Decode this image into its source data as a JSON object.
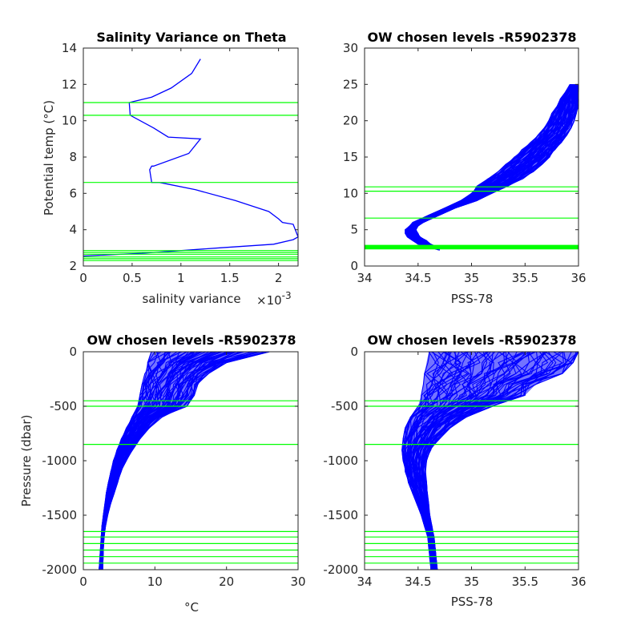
{
  "colors": {
    "profile": "#0000ff",
    "level_line": "#00ff00",
    "axis": "#262626"
  },
  "chart_data": [
    {
      "type": "line",
      "title": "Salinity Variance on Theta",
      "xlabel": "salinity variance",
      "x_exponent_label": "×10",
      "x_exponent_power": "-3",
      "ylabel": "Potential temp (°C)",
      "xlim": [
        0,
        2.2
      ],
      "ylim": [
        2,
        14
      ],
      "xticks": [
        0,
        0.5,
        1,
        1.5,
        2
      ],
      "xtick_labels": [
        "0",
        "0.5",
        "1",
        "1.5",
        "2"
      ],
      "yticks": [
        2,
        4,
        6,
        8,
        10,
        12,
        14
      ],
      "ytick_labels": [
        "2",
        "4",
        "6",
        "8",
        "10",
        "12",
        "14"
      ],
      "series": [
        {
          "x": [
            1.2,
            1.11,
            0.9,
            0.7,
            0.47,
            0.48,
            0.72,
            0.87,
            1.2,
            1.08,
            0.72,
            0.7,
            0.68,
            0.7,
            0.78,
            1.15,
            1.56,
            1.9,
            2.0,
            2.04,
            2.15,
            2.2,
            2.15,
            1.95,
            1.4,
            0.6,
            0.0
          ],
          "y": [
            13.4,
            12.6,
            11.8,
            11.3,
            11.0,
            10.3,
            9.6,
            9.1,
            9.0,
            8.2,
            7.5,
            7.5,
            7.3,
            6.6,
            6.6,
            6.2,
            5.6,
            5.0,
            4.6,
            4.4,
            4.3,
            3.6,
            3.45,
            3.2,
            3.0,
            2.7,
            2.55
          ]
        }
      ],
      "hlines": [
        11.0,
        10.3,
        6.6,
        2.85,
        2.75,
        2.65,
        2.5,
        2.4,
        2.3
      ]
    },
    {
      "type": "line",
      "title": "OW chosen levels -R5902378",
      "xlabel": "PSS-78",
      "ylabel": "",
      "xlim": [
        34,
        36
      ],
      "ylim": [
        0,
        30
      ],
      "xticks": [
        34,
        34.5,
        35,
        35.5,
        36
      ],
      "xtick_labels": [
        "34",
        "34.5",
        "35",
        "35.5",
        "36"
      ],
      "yticks": [
        0,
        5,
        10,
        15,
        20,
        25,
        30
      ],
      "ytick_labels": [
        "0",
        "5",
        "10",
        "15",
        "20",
        "25",
        "30"
      ],
      "profile_envelope": {
        "y": [
          2.2,
          2.6,
          3.0,
          3.5,
          4.0,
          4.5,
          5.0,
          5.5,
          6.0,
          7.0,
          8.0,
          9.0,
          10.0,
          11.0,
          12.0,
          13.0,
          14.0,
          15.0,
          16.0,
          17.0,
          18.0,
          19.0,
          20.0,
          21.0,
          22.0,
          23.0,
          24.0,
          25.0
        ],
        "x_left": [
          34.7,
          34.6,
          34.5,
          34.45,
          34.4,
          34.38,
          34.38,
          34.42,
          34.45,
          34.6,
          34.75,
          34.9,
          35.0,
          35.05,
          35.15,
          35.25,
          35.32,
          35.4,
          35.47,
          35.55,
          35.62,
          35.68,
          35.72,
          35.75,
          35.8,
          35.83,
          35.88,
          35.92
        ],
        "x_right": [
          34.7,
          34.68,
          34.62,
          34.58,
          34.52,
          34.5,
          34.48,
          34.5,
          34.55,
          34.7,
          34.85,
          35.05,
          35.2,
          35.35,
          35.48,
          35.58,
          35.66,
          35.73,
          35.78,
          35.84,
          35.89,
          35.93,
          35.96,
          35.98,
          36.0,
          36.0,
          36.0,
          36.0
        ]
      },
      "hlines": [
        10.9,
        10.3,
        6.6,
        2.85,
        2.75,
        2.65,
        2.55,
        2.45,
        2.35
      ]
    },
    {
      "type": "line",
      "title": "OW chosen levels -R5902378",
      "xlabel": "°C",
      "ylabel": "Pressure (dbar)",
      "xlim": [
        0,
        30
      ],
      "ylim": [
        -2000,
        0
      ],
      "xticks": [
        0,
        10,
        20,
        30
      ],
      "xtick_labels": [
        "0",
        "10",
        "20",
        "30"
      ],
      "yticks": [
        -2000,
        -1500,
        -1000,
        -500,
        0
      ],
      "ytick_labels": [
        "-2000",
        "-1500",
        "-1000",
        "-500",
        "0"
      ],
      "profile_envelope": {
        "y": [
          0,
          -100,
          -200,
          -300,
          -400,
          -500,
          -600,
          -700,
          -800,
          -900,
          -1000,
          -1100,
          -1200,
          -1300,
          -1400,
          -1500,
          -1600,
          -1700,
          -1800,
          -1900,
          -2000
        ],
        "x_left": [
          9.5,
          9.0,
          8.6,
          8.2,
          7.9,
          7.6,
          6.8,
          6.0,
          5.3,
          4.7,
          4.2,
          3.8,
          3.5,
          3.2,
          3.0,
          2.8,
          2.6,
          2.5,
          2.4,
          2.3,
          2.2
        ],
        "x_right": [
          26.0,
          20.0,
          17.5,
          16.0,
          15.5,
          14.5,
          11.0,
          9.2,
          7.9,
          6.9,
          6.0,
          5.3,
          4.8,
          4.3,
          3.8,
          3.4,
          3.1,
          2.9,
          2.8,
          2.75,
          2.7
        ]
      },
      "hlines": [
        -450,
        -500,
        -850,
        -1650,
        -1700,
        -1760,
        -1820,
        -1880,
        -1940
      ]
    },
    {
      "type": "line",
      "title": "OW chosen levels -R5902378",
      "xlabel": "PSS-78",
      "ylabel": "",
      "xlim": [
        34,
        36
      ],
      "ylim": [
        -2000,
        0
      ],
      "xticks": [
        34,
        34.5,
        35,
        35.5,
        36
      ],
      "xtick_labels": [
        "34",
        "34.5",
        "35",
        "35.5",
        "36"
      ],
      "yticks": [
        -2000,
        -1500,
        -1000,
        -500,
        0
      ],
      "ytick_labels": [
        "-2000",
        "-1500",
        "-1000",
        "-500",
        "0"
      ],
      "profile_envelope": {
        "y": [
          0,
          -100,
          -200,
          -300,
          -400,
          -500,
          -600,
          -700,
          -800,
          -900,
          -1000,
          -1100,
          -1200,
          -1300,
          -1400,
          -1500,
          -1600,
          -1700,
          -1800,
          -1900,
          -2000
        ],
        "x_left": [
          34.6,
          34.58,
          34.56,
          34.55,
          34.53,
          34.5,
          34.43,
          34.38,
          34.36,
          34.35,
          34.36,
          34.38,
          34.41,
          34.45,
          34.49,
          34.53,
          34.56,
          34.59,
          34.6,
          34.61,
          34.62
        ],
        "x_right": [
          36.0,
          35.95,
          35.85,
          35.6,
          35.5,
          35.2,
          34.95,
          34.8,
          34.7,
          34.62,
          34.58,
          34.57,
          34.58,
          34.59,
          34.6,
          34.61,
          34.63,
          34.65,
          34.66,
          34.67,
          34.68
        ]
      },
      "hlines": [
        -450,
        -500,
        -850,
        -1650,
        -1700,
        -1760,
        -1820,
        -1880,
        -1940
      ]
    }
  ]
}
